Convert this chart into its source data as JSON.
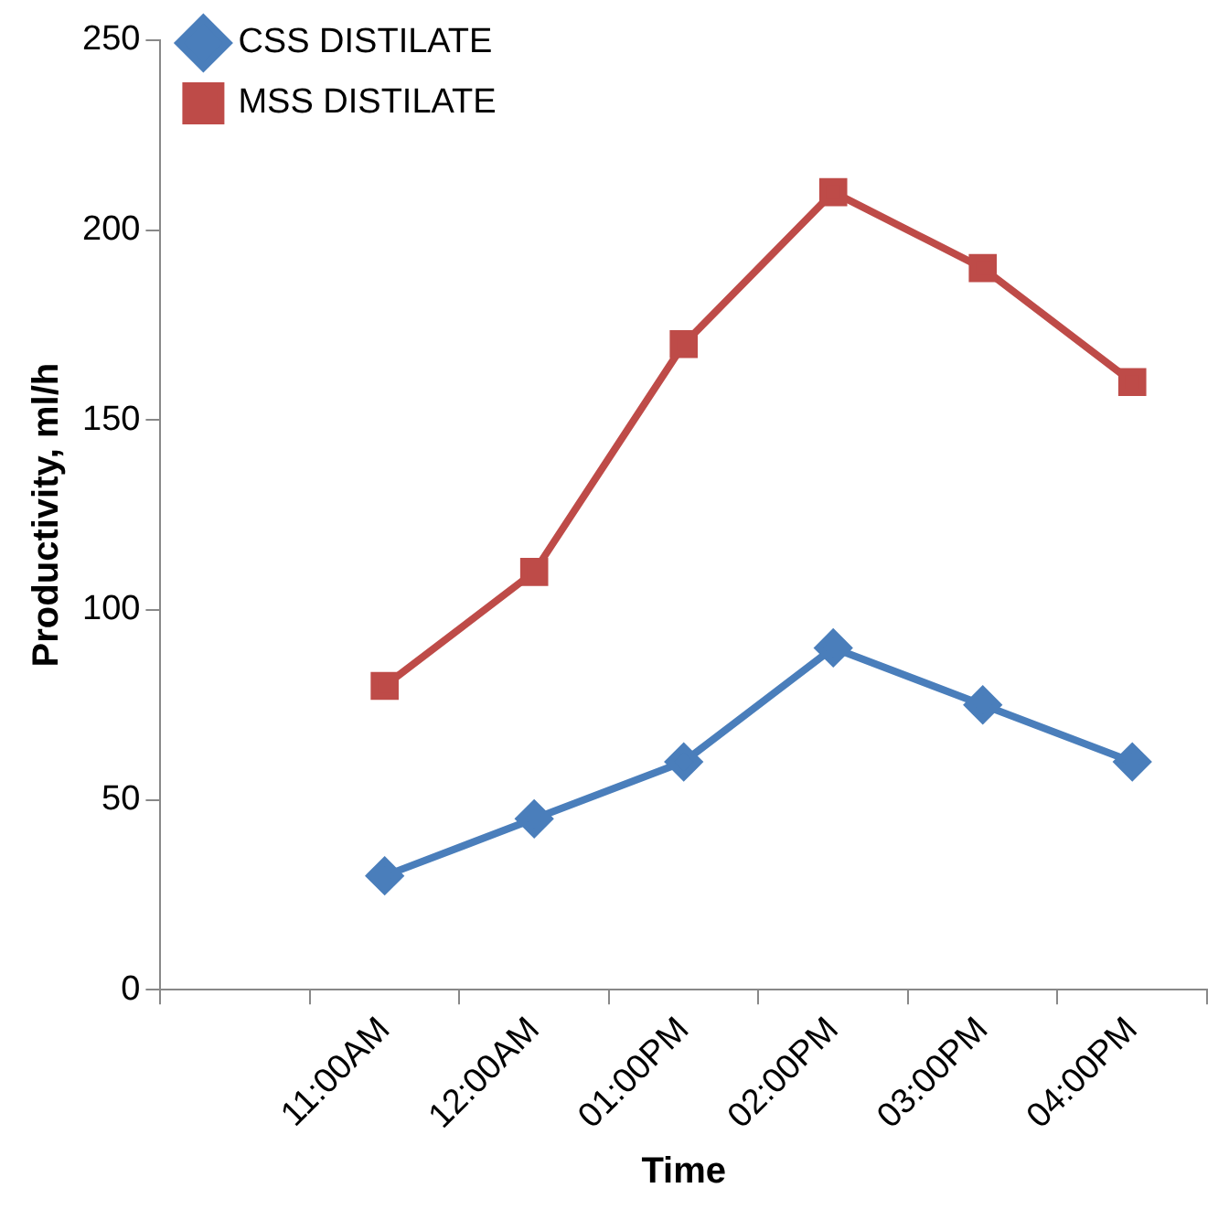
{
  "chart_data": {
    "type": "line",
    "xlabel": "Time",
    "ylabel": "Productivity, ml/h",
    "categories": [
      null,
      "11:00AM",
      "12:00AM",
      "01:00PM",
      "02:00PM",
      "03:00PM",
      "04:00PM"
    ],
    "series": [
      {
        "name": "CSS DISTILATE",
        "color": "#4a7ebb",
        "marker": "diamond",
        "values": [
          null,
          30,
          45,
          60,
          90,
          75,
          60
        ]
      },
      {
        "name": "MSS DISTILATE",
        "color": "#be4b48",
        "marker": "square",
        "values": [
          null,
          80,
          110,
          170,
          210,
          190,
          160
        ]
      }
    ],
    "ylim": [
      0,
      250
    ],
    "yticks": [
      0,
      50,
      100,
      150,
      200,
      250
    ],
    "grid": false,
    "legend": "top left",
    "line_style": "solid"
  }
}
